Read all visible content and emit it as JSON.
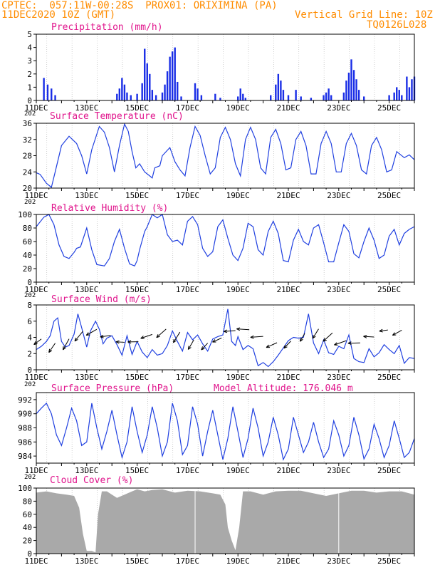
{
  "header": {
    "line1": "CPTEC:  057:11W-00:28S  PROX01: ORIXIMINA (PA)",
    "line2_left": "11DEC2020 10Z (GMT)",
    "line2_right": "Vertical Grid Line: 10Z",
    "line3_right": "TQ0126L028"
  },
  "x_ticks": [
    "11DEC",
    "13DEC",
    "15DEC",
    "17DEC",
    "19DEC",
    "21DEC",
    "23DEC",
    "25DEC"
  ],
  "year_stub": "202",
  "colors": {
    "title": "#e0148c",
    "header": "#ff8c00",
    "line": "#2040e0",
    "bar": "#1a2ee6",
    "cloud": "#a9a9a9",
    "arrow": "#000000"
  },
  "chart_data": [
    {
      "type": "bar",
      "title": "Precipitation (mm/h)",
      "ylim": [
        0,
        5
      ],
      "yticks": [
        "0",
        "1",
        "2",
        "3",
        "4",
        "5"
      ],
      "x_unit": "days since 11DEC 00Z",
      "bars": [
        [
          0.3,
          1.7
        ],
        [
          0.45,
          1.2
        ],
        [
          0.6,
          0.9
        ],
        [
          0.75,
          0.4
        ],
        [
          3.2,
          0.5
        ],
        [
          3.3,
          0.9
        ],
        [
          3.4,
          1.7
        ],
        [
          3.5,
          1.2
        ],
        [
          3.6,
          0.6
        ],
        [
          3.75,
          0.4
        ],
        [
          4.0,
          0.5
        ],
        [
          4.2,
          1.3
        ],
        [
          4.3,
          3.9
        ],
        [
          4.4,
          2.8
        ],
        [
          4.5,
          2.0
        ],
        [
          4.6,
          0.8
        ],
        [
          4.75,
          0.4
        ],
        [
          5.0,
          0.6
        ],
        [
          5.1,
          1.2
        ],
        [
          5.2,
          2.2
        ],
        [
          5.3,
          3.3
        ],
        [
          5.4,
          3.7
        ],
        [
          5.5,
          4.0
        ],
        [
          5.6,
          1.4
        ],
        [
          5.75,
          0.3
        ],
        [
          6.3,
          1.3
        ],
        [
          6.4,
          0.9
        ],
        [
          6.55,
          0.4
        ],
        [
          7.1,
          0.5
        ],
        [
          7.3,
          0.2
        ],
        [
          8.0,
          0.3
        ],
        [
          8.1,
          0.9
        ],
        [
          8.2,
          0.5
        ],
        [
          8.3,
          0.2
        ],
        [
          9.3,
          0.4
        ],
        [
          9.5,
          1.2
        ],
        [
          9.6,
          2.0
        ],
        [
          9.7,
          1.5
        ],
        [
          9.8,
          0.8
        ],
        [
          10.0,
          0.4
        ],
        [
          10.3,
          0.8
        ],
        [
          10.5,
          0.3
        ],
        [
          10.9,
          0.2
        ],
        [
          11.4,
          0.4
        ],
        [
          11.5,
          0.6
        ],
        [
          11.6,
          0.9
        ],
        [
          11.7,
          0.4
        ],
        [
          12.2,
          0.6
        ],
        [
          12.3,
          1.5
        ],
        [
          12.4,
          2.1
        ],
        [
          12.5,
          3.1
        ],
        [
          12.6,
          2.3
        ],
        [
          12.7,
          1.6
        ],
        [
          12.8,
          0.8
        ],
        [
          13.0,
          0.3
        ],
        [
          14.0,
          0.4
        ],
        [
          14.2,
          0.6
        ],
        [
          14.3,
          1.0
        ],
        [
          14.4,
          0.8
        ],
        [
          14.5,
          0.4
        ],
        [
          14.7,
          1.8
        ],
        [
          14.8,
          1.0
        ],
        [
          14.9,
          1.6
        ],
        [
          15.0,
          1.8
        ]
      ]
    },
    {
      "type": "line",
      "title": "Surface Temperature (nC)",
      "ylim": [
        20,
        36
      ],
      "yticks": [
        "20",
        "24",
        "28",
        "32",
        "36"
      ],
      "x_unit": "days since 11DEC 00Z",
      "x": [
        0.0,
        0.15,
        0.4,
        0.6,
        0.75,
        1.0,
        1.3,
        1.6,
        1.8,
        2.0,
        2.2,
        2.5,
        2.7,
        2.9,
        3.1,
        3.3,
        3.5,
        3.65,
        3.8,
        3.95,
        4.1,
        4.3,
        4.5,
        4.6,
        4.7,
        4.9,
        5.0,
        5.3,
        5.5,
        5.7,
        5.9,
        6.1,
        6.3,
        6.5,
        6.7,
        6.9,
        7.1,
        7.3,
        7.5,
        7.7,
        7.9,
        8.1,
        8.3,
        8.5,
        8.7,
        8.9,
        9.1,
        9.3,
        9.5,
        9.7,
        9.9,
        10.1,
        10.3,
        10.5,
        10.7,
        10.9,
        11.1,
        11.3,
        11.5,
        11.7,
        11.9,
        12.1,
        12.3,
        12.5,
        12.7,
        12.9,
        13.1,
        13.3,
        13.5,
        13.7,
        13.9,
        14.1,
        14.3,
        14.6,
        14.8,
        15.0
      ],
      "y": [
        23.8,
        23.4,
        21.2,
        20.2,
        24.0,
        30.5,
        32.8,
        31.0,
        28.0,
        23.5,
        29.5,
        35.2,
        33.8,
        30.0,
        24.0,
        30.5,
        35.8,
        34.0,
        29.0,
        25.0,
        26.0,
        24.0,
        23.0,
        22.5,
        25.0,
        25.5,
        28.0,
        30.0,
        26.5,
        24.5,
        23.0,
        30.0,
        35.2,
        33.0,
        28.0,
        23.5,
        25.0,
        32.5,
        35.0,
        32.0,
        26.0,
        23.0,
        32.0,
        35.0,
        32.0,
        25.0,
        23.5,
        32.5,
        34.5,
        31.0,
        24.5,
        25.0,
        32.0,
        34.0,
        30.5,
        23.5,
        23.5,
        31.0,
        34.0,
        31.0,
        24.0,
        24.0,
        31.0,
        33.5,
        30.5,
        24.5,
        23.5,
        30.5,
        32.5,
        29.5,
        24.0,
        24.5,
        29.0,
        27.5,
        28.2,
        27.0
      ]
    },
    {
      "type": "line",
      "title": "Relative Humidity (%)",
      "ylim": [
        0,
        100
      ],
      "yticks": [
        "0",
        "20",
        "40",
        "60",
        "80",
        "100"
      ],
      "x_unit": "days since 11DEC 00Z",
      "x": [
        0.0,
        0.3,
        0.5,
        0.7,
        0.9,
        1.1,
        1.3,
        1.5,
        1.6,
        1.75,
        2.0,
        2.2,
        2.4,
        2.7,
        2.9,
        3.1,
        3.3,
        3.5,
        3.7,
        3.9,
        4.0,
        4.1,
        4.3,
        4.4,
        4.6,
        4.8,
        5.0,
        5.2,
        5.4,
        5.6,
        5.8,
        6.0,
        6.2,
        6.4,
        6.6,
        6.8,
        7.0,
        7.2,
        7.4,
        7.6,
        7.8,
        8.0,
        8.2,
        8.4,
        8.6,
        8.8,
        9.0,
        9.2,
        9.4,
        9.6,
        9.8,
        10.0,
        10.2,
        10.4,
        10.6,
        10.8,
        11.0,
        11.2,
        11.4,
        11.6,
        11.8,
        12.0,
        12.2,
        12.4,
        12.6,
        12.8,
        13.0,
        13.2,
        13.4,
        13.6,
        13.8,
        14.0,
        14.2,
        14.4,
        14.6,
        14.8,
        15.0
      ],
      "y": [
        82,
        96,
        100,
        85,
        55,
        38,
        35,
        44,
        50,
        52,
        80,
        48,
        26,
        24,
        35,
        60,
        78,
        50,
        27,
        24,
        32,
        48,
        75,
        82,
        100,
        95,
        100,
        70,
        60,
        62,
        55,
        90,
        97,
        85,
        50,
        38,
        45,
        82,
        92,
        65,
        40,
        32,
        50,
        87,
        82,
        48,
        40,
        75,
        90,
        72,
        32,
        30,
        62,
        78,
        60,
        55,
        80,
        85,
        58,
        30,
        30,
        58,
        85,
        75,
        42,
        36,
        60,
        80,
        62,
        35,
        40,
        68,
        78,
        55,
        72,
        78,
        82
      ]
    },
    {
      "type": "line",
      "title": "Surface Wind (m/s)",
      "ylim": [
        0,
        8
      ],
      "yticks": [
        "0",
        "2",
        "4",
        "6",
        "8"
      ],
      "x_unit": "days since 11DEC 00Z",
      "x": [
        0.0,
        0.2,
        0.4,
        0.55,
        0.7,
        0.85,
        1.0,
        1.15,
        1.3,
        1.5,
        1.65,
        1.8,
        2.0,
        2.15,
        2.35,
        2.5,
        2.65,
        2.8,
        3.0,
        3.2,
        3.4,
        3.6,
        3.8,
        4.0,
        4.2,
        4.4,
        4.6,
        4.8,
        5.0,
        5.2,
        5.4,
        5.6,
        5.8,
        6.0,
        6.2,
        6.4,
        6.6,
        6.8,
        7.0,
        7.2,
        7.4,
        7.6,
        7.75,
        7.9,
        8.0,
        8.2,
        8.4,
        8.6,
        8.8,
        9.0,
        9.2,
        9.4,
        9.6,
        9.8,
        10.0,
        10.2,
        10.4,
        10.6,
        10.8,
        11.0,
        11.2,
        11.4,
        11.6,
        11.8,
        12.0,
        12.2,
        12.4,
        12.6,
        12.8,
        13.0,
        13.2,
        13.4,
        13.6,
        13.8,
        14.0,
        14.2,
        14.4,
        14.6,
        14.8,
        15.0
      ],
      "y": [
        2.5,
        2.9,
        3.5,
        4.2,
        6.0,
        6.4,
        3.5,
        2.8,
        3.0,
        4.4,
        6.9,
        5.2,
        2.8,
        4.8,
        6.0,
        5.0,
        3.2,
        3.9,
        4.2,
        3.1,
        1.8,
        4.2,
        1.9,
        3.5,
        2.2,
        1.5,
        2.5,
        1.8,
        2.0,
        3.0,
        4.8,
        3.5,
        2.3,
        4.6,
        3.7,
        4.3,
        3.2,
        2.3,
        3.8,
        4.1,
        4.3,
        7.5,
        3.5,
        3.0,
        4.1,
        2.5,
        3.0,
        2.6,
        0.5,
        0.9,
        0.4,
        1.0,
        1.8,
        2.7,
        3.6,
        4.0,
        3.9,
        4.0,
        6.9,
        3.3,
        2.0,
        3.7,
        2.1,
        1.9,
        2.9,
        2.6,
        4.3,
        1.4,
        1.0,
        0.9,
        2.6,
        1.6,
        2.1,
        3.1,
        2.5,
        2.0,
        3.0,
        0.8,
        1.5,
        1.4
      ]
    },
    {
      "type": "line",
      "title": "Surface Pressure (hPa)",
      "annotation": "Model Altitude: 176.046 m",
      "ylim": [
        983,
        993
      ],
      "yticks": [
        "984",
        "986",
        "988",
        "990",
        "992"
      ],
      "x_unit": "days since 11DEC 00Z",
      "x": [
        0.0,
        0.2,
        0.4,
        0.6,
        0.8,
        1.0,
        1.2,
        1.4,
        1.6,
        1.8,
        2.0,
        2.2,
        2.4,
        2.6,
        2.8,
        3.0,
        3.2,
        3.4,
        3.6,
        3.8,
        4.0,
        4.2,
        4.4,
        4.6,
        4.8,
        5.0,
        5.2,
        5.4,
        5.6,
        5.8,
        6.0,
        6.2,
        6.4,
        6.6,
        6.8,
        7.0,
        7.2,
        7.4,
        7.6,
        7.8,
        8.0,
        8.2,
        8.4,
        8.6,
        8.8,
        9.0,
        9.2,
        9.4,
        9.6,
        9.8,
        10.0,
        10.2,
        10.4,
        10.6,
        10.8,
        11.0,
        11.2,
        11.4,
        11.6,
        11.8,
        12.0,
        12.2,
        12.4,
        12.6,
        12.8,
        13.0,
        13.2,
        13.4,
        13.6,
        13.8,
        14.0,
        14.2,
        14.4,
        14.6,
        14.8,
        15.0
      ],
      "y": [
        990.0,
        990.8,
        991.5,
        990.0,
        987.0,
        985.5,
        988.0,
        990.8,
        989.0,
        985.5,
        986.0,
        991.5,
        988.0,
        985.0,
        987.5,
        990.5,
        987.0,
        983.8,
        986.0,
        991.0,
        987.5,
        984.5,
        987.0,
        991.0,
        988.0,
        984.0,
        986.0,
        991.5,
        989.0,
        984.2,
        985.5,
        991.0,
        988.5,
        984.0,
        987.5,
        990.5,
        987.0,
        983.5,
        986.5,
        991.0,
        987.5,
        983.8,
        986.5,
        990.8,
        988.0,
        984.0,
        986.0,
        989.5,
        987.0,
        983.5,
        985.0,
        989.5,
        987.0,
        984.5,
        986.0,
        988.8,
        986.0,
        983.8,
        985.0,
        989.0,
        987.0,
        984.0,
        985.5,
        989.5,
        987.0,
        983.6,
        985.0,
        988.5,
        986.5,
        983.8,
        985.5,
        989.0,
        986.5,
        983.8,
        984.5,
        986.5
      ]
    },
    {
      "type": "area",
      "title": "Cloud Cover (%)",
      "ylim": [
        0,
        100
      ],
      "yticks": [
        "0",
        "20",
        "40",
        "60",
        "80",
        "100"
      ],
      "x_unit": "days since 11DEC 00Z",
      "x": [
        0.0,
        0.4,
        0.8,
        1.2,
        1.5,
        1.7,
        1.85,
        2.0,
        2.1,
        2.2,
        2.35,
        2.45,
        2.6,
        2.8,
        3.0,
        3.2,
        3.5,
        3.8,
        4.0,
        4.3,
        4.6,
        5.0,
        5.5,
        6.0,
        6.5,
        7.0,
        7.3,
        7.5,
        7.6,
        7.75,
        7.9,
        8.05,
        8.2,
        8.5,
        9.0,
        9.5,
        10.0,
        10.5,
        11.0,
        11.5,
        12.0,
        12.5,
        13.0,
        13.5,
        14.0,
        14.5,
        15.0
      ],
      "y": [
        93,
        95,
        92,
        90,
        88,
        70,
        30,
        4,
        4,
        4,
        2,
        60,
        95,
        95,
        90,
        85,
        90,
        95,
        98,
        95,
        97,
        98,
        93,
        96,
        95,
        92,
        90,
        75,
        40,
        20,
        5,
        40,
        95,
        95,
        90,
        95,
        96,
        96,
        92,
        88,
        92,
        96,
        96,
        93,
        95,
        95,
        90
      ]
    }
  ]
}
